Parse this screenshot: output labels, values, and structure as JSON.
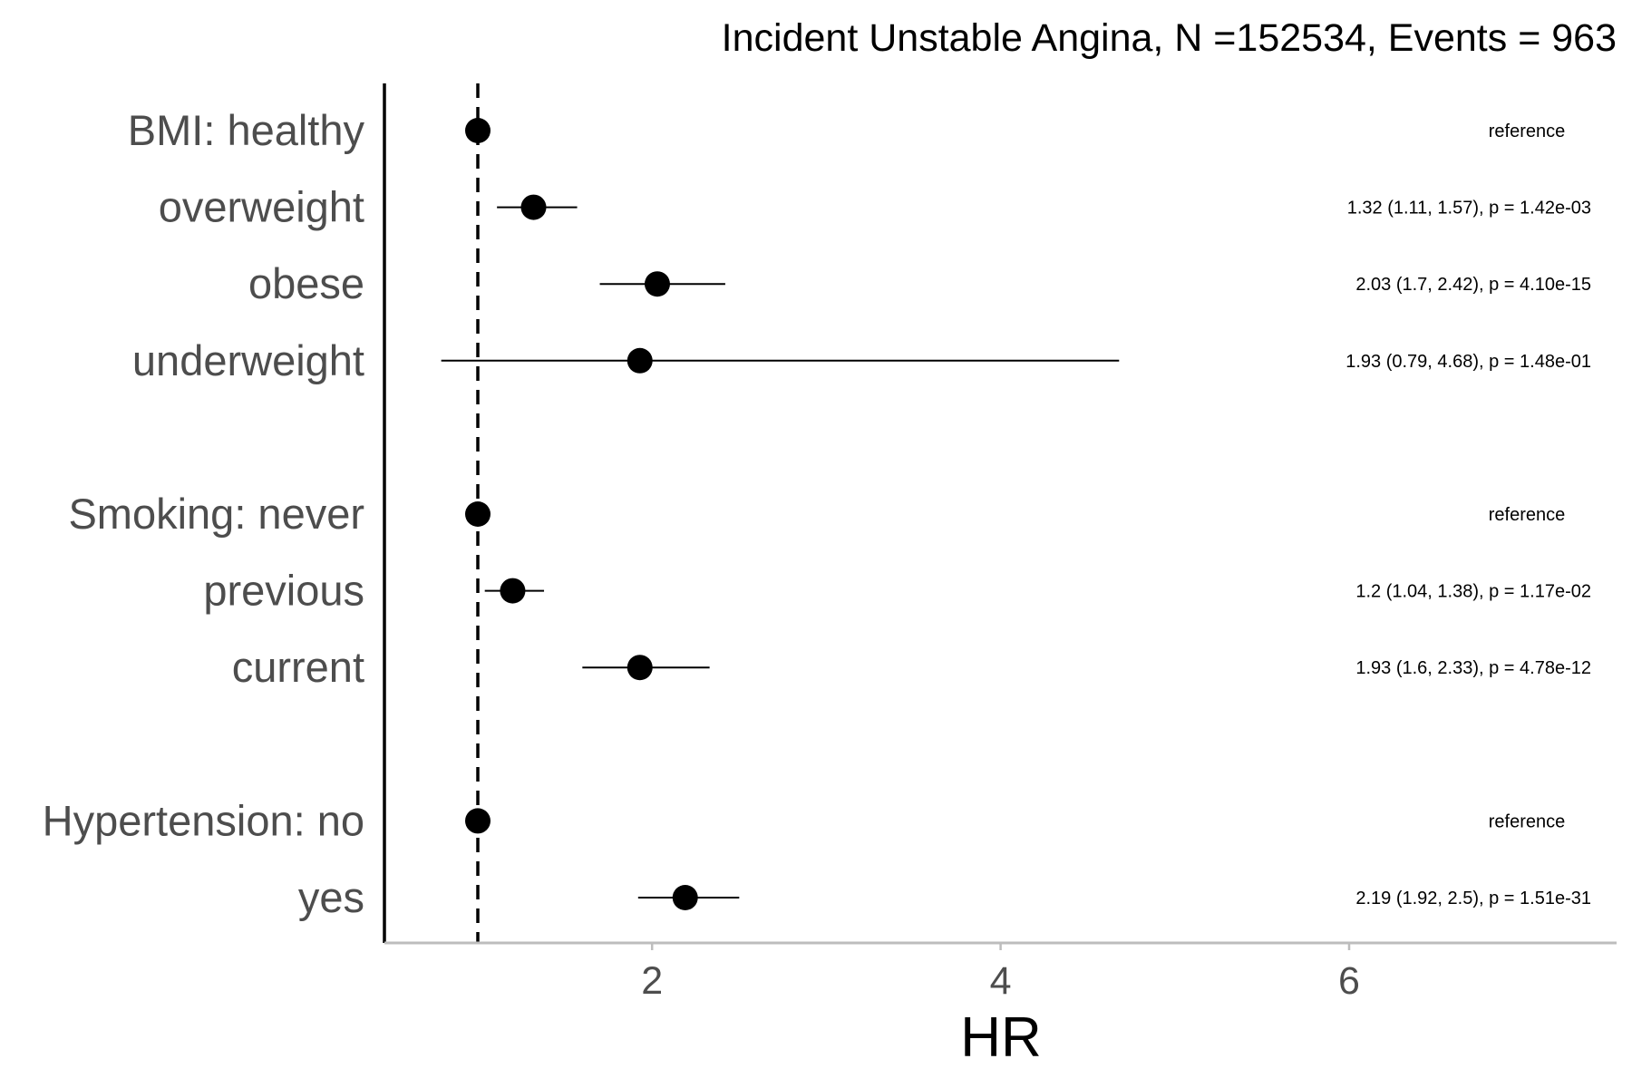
{
  "chart_data": {
    "type": "forest",
    "title": "Incident Unstable Angina, N =152534, Events = 963",
    "xlabel": "HR",
    "x_ticks": [
      2,
      4,
      6
    ],
    "xlim": [
      0.5,
      7.6
    ],
    "reference_line": 1,
    "reference_line_style": "dashed",
    "grid": false,
    "point_color": "#000000",
    "rows": [
      {
        "label": "BMI: healthy",
        "hr": 1,
        "lo": null,
        "hi": null,
        "annotation": "reference"
      },
      {
        "label": "overweight",
        "hr": 1.32,
        "lo": 1.11,
        "hi": 1.57,
        "annotation": "1.32 (1.11, 1.57), p = 1.42e-03"
      },
      {
        "label": "obese",
        "hr": 2.03,
        "lo": 1.7,
        "hi": 2.42,
        "annotation": "2.03 (1.7, 2.42), p = 4.10e-15"
      },
      {
        "label": "underweight",
        "hr": 1.93,
        "lo": 0.79,
        "hi": 4.68,
        "annotation": "1.93 (0.79, 4.68), p = 1.48e-01"
      },
      {
        "label": "",
        "spacer": true
      },
      {
        "label": "Smoking: never",
        "hr": 1,
        "lo": null,
        "hi": null,
        "annotation": "reference"
      },
      {
        "label": "previous",
        "hr": 1.2,
        "lo": 1.04,
        "hi": 1.38,
        "annotation": "1.2 (1.04, 1.38), p = 1.17e-02"
      },
      {
        "label": "current",
        "hr": 1.93,
        "lo": 1.6,
        "hi": 2.33,
        "annotation": "1.93 (1.6, 2.33), p = 4.78e-12"
      },
      {
        "label": "",
        "spacer": true
      },
      {
        "label": "Hypertension: no",
        "hr": 1,
        "lo": null,
        "hi": null,
        "annotation": "reference"
      },
      {
        "label": "yes",
        "hr": 2.19,
        "lo": 1.92,
        "hi": 2.5,
        "annotation": "2.19 (1.92, 2.5), p = 1.51e-31"
      }
    ]
  }
}
